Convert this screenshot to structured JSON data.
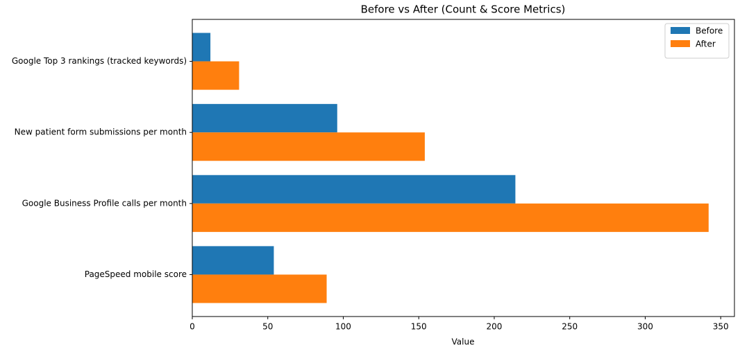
{
  "chart_data": {
    "type": "barh",
    "title": "Before vs After (Count & Score Metrics)",
    "x_label": "Value",
    "categories": [
      "Google Top 3 rankings (tracked keywords)",
      "New patient form submissions per month",
      "Google Business Profile calls per month",
      "PageSpeed mobile score"
    ],
    "series": [
      {
        "name": "Before",
        "color": "#1f77b4",
        "values": [
          12,
          96,
          214,
          54
        ]
      },
      {
        "name": "After",
        "color": "#ff7f0e",
        "values": [
          31,
          154,
          342,
          89
        ]
      }
    ],
    "xlim": [
      0,
      359.1
    ],
    "xticks": [
      0,
      50,
      100,
      150,
      200,
      250,
      300,
      350
    ],
    "legend": "upper right"
  }
}
